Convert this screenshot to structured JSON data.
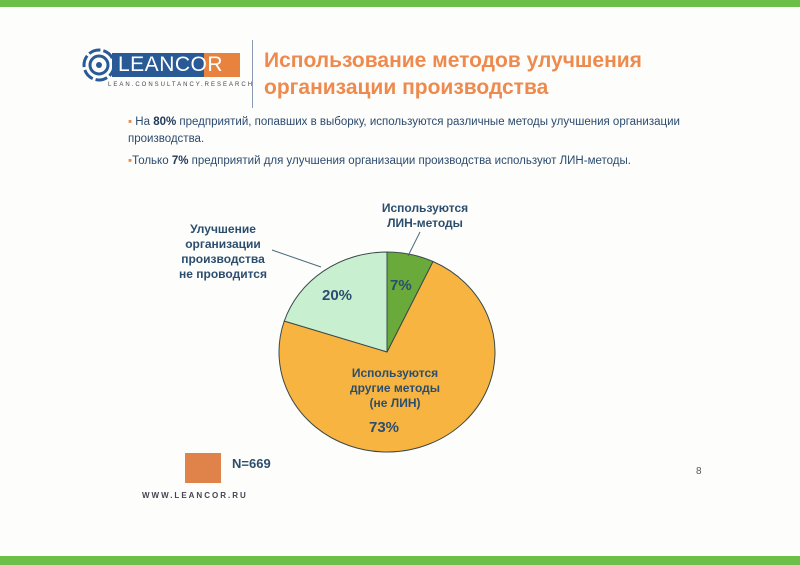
{
  "logo": {
    "text_lean": "LEAN",
    "text_cor": "COR",
    "tagline": "LEAN.CONSULTANCY.RESEARCH"
  },
  "title_line1": "Использование методов улучшения",
  "title_line2": "организации производства",
  "bullets": [
    {
      "pre": "На ",
      "bold": "80%",
      "post": " предприятий, попавших в выборку, используются различные методы улучшения организации производства."
    },
    {
      "pre": "Только ",
      "bold": "7%",
      "post": " предприятий для улучшения организации производства используют ЛИН-методы."
    }
  ],
  "chart_data": {
    "type": "pie",
    "start": "top, clockwise",
    "slices": [
      {
        "label": "Используются ЛИН-методы",
        "value": 7,
        "display": "7%",
        "color": "#6aaa3a"
      },
      {
        "label": "Используются другие методы (не ЛИН)",
        "value": 73,
        "display": "73%",
        "color": "#f8b440"
      },
      {
        "label": "Улучшение организации производства не проводится",
        "value": 20,
        "display": "20%",
        "color": "#c8f0d0"
      }
    ],
    "label_lines": {
      "lean": [
        "Используются",
        "ЛИН-методы"
      ],
      "other": [
        "Используются",
        "другие методы",
        "(не ЛИН)"
      ],
      "none": [
        "Улучшение",
        "организации",
        "производства",
        "не проводится"
      ]
    },
    "sample_note": "N=669",
    "legend_color": "#e0834b"
  },
  "footer": {
    "website": "WWW.LEANCOR.RU",
    "page": "8"
  },
  "colors": {
    "accent_orange": "#ee8a4e",
    "brand_blue": "#2a5a96",
    "frame_green": "#6cc04a"
  }
}
